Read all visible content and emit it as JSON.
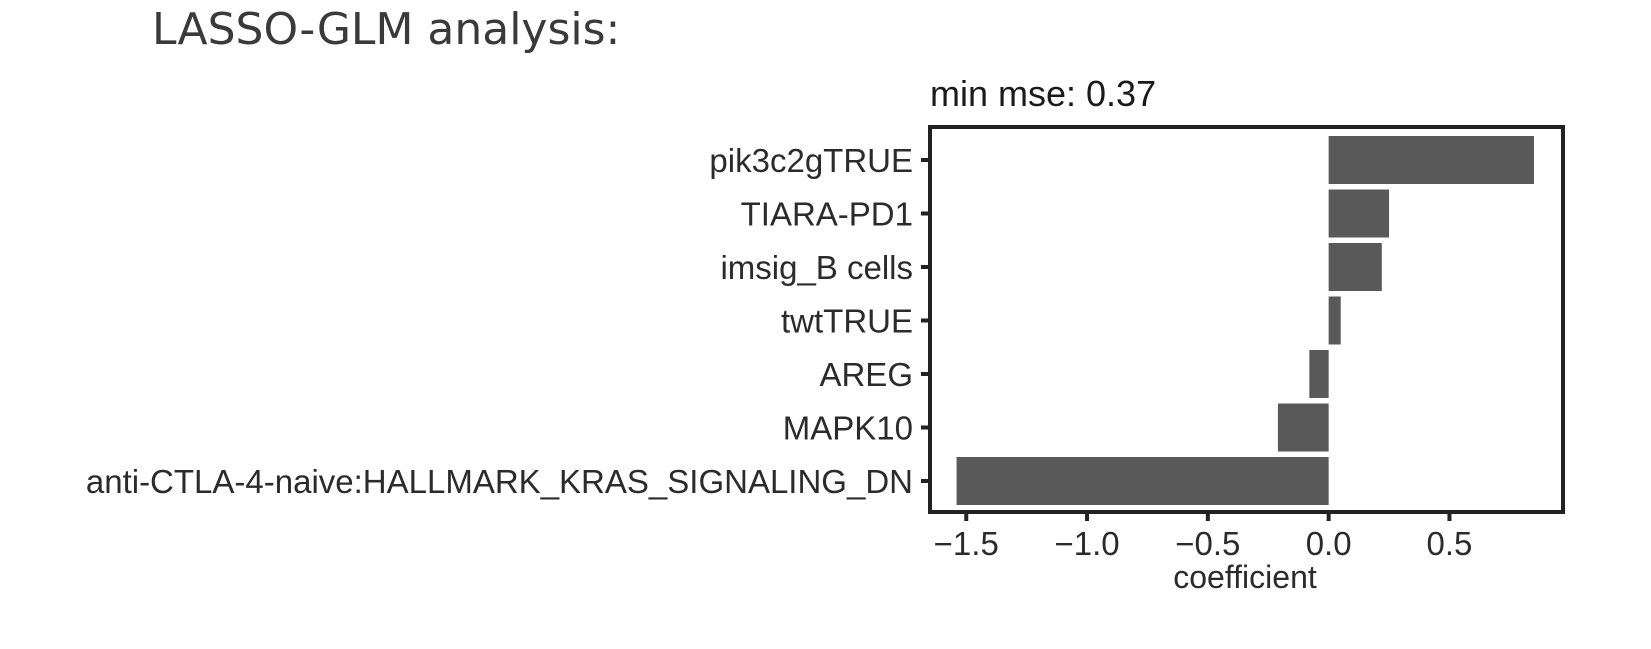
{
  "heading": "LASSO-GLM analysis:",
  "chart_data": {
    "type": "bar",
    "orientation": "horizontal",
    "title": "min mse:  0.37",
    "xlabel": "coefficient",
    "ylabel": "",
    "categories": [
      "pik3c2gTRUE",
      "TIARA-PD1",
      "imsig_B cells",
      "twtTRUE",
      "AREG",
      "MAPK10",
      "anti-CTLA-4-naive:HALLMARK_KRAS_SIGNALING_DN"
    ],
    "values": [
      0.85,
      0.25,
      0.22,
      0.05,
      -0.08,
      -0.21,
      -1.54
    ],
    "xlim": [
      -1.65,
      0.97
    ],
    "xticks": [
      -1.5,
      -1.0,
      -0.5,
      0.0,
      0.5
    ],
    "xtick_labels": [
      "−1.5",
      "−1.0",
      "−0.5",
      "0.0",
      "0.5"
    ],
    "grid": false,
    "bar_color": "#595959",
    "frame_color": "#222222"
  }
}
